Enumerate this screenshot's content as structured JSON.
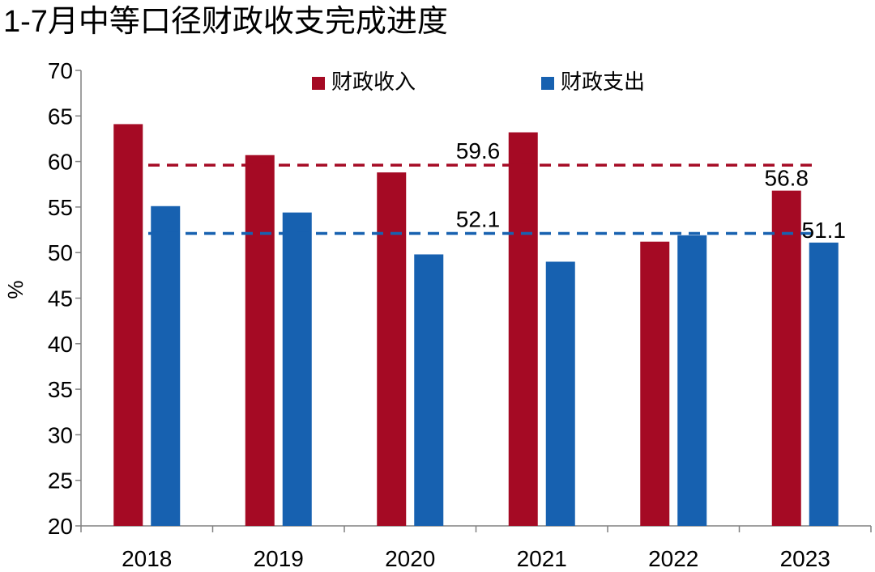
{
  "chart_data": {
    "type": "bar",
    "title": "1-7月中等口径财政收支完成进度",
    "xlabel": "",
    "ylabel": "%",
    "ylim": [
      20,
      70
    ],
    "yticks": [
      20,
      25,
      30,
      35,
      40,
      45,
      50,
      55,
      60,
      65,
      70
    ],
    "categories": [
      "2018",
      "2019",
      "2020",
      "2021",
      "2022",
      "2023"
    ],
    "series": [
      {
        "name": "财政收入",
        "color": "#A50A24",
        "values": [
          64.1,
          60.7,
          58.8,
          63.2,
          51.2,
          56.8
        ]
      },
      {
        "name": "财政支出",
        "color": "#1761B0",
        "values": [
          55.1,
          54.4,
          49.8,
          49.0,
          51.9,
          51.1
        ]
      }
    ],
    "reference_lines": [
      {
        "series": "财政收入",
        "value": 59.6,
        "label": "59.6",
        "color": "#A50A24"
      },
      {
        "series": "财政支出",
        "value": 52.1,
        "label": "52.1",
        "color": "#1761B0"
      }
    ],
    "data_labels": [
      {
        "series": "财政收入",
        "category": "2023",
        "label": "56.8"
      },
      {
        "series": "财政支出",
        "category": "2023",
        "label": "51.1"
      }
    ],
    "legend_position": "top-center",
    "grid": false
  }
}
